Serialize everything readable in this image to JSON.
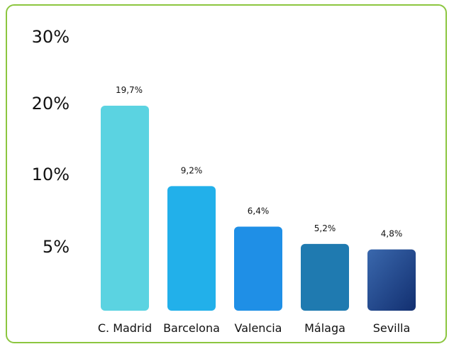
{
  "chart_data": {
    "type": "bar",
    "categories": [
      "C. Madrid",
      "Barcelona",
      "Valencia",
      "Málaga",
      "Sevilla"
    ],
    "values": [
      19.7,
      9.2,
      6.4,
      5.2,
      4.8
    ],
    "data_labels": [
      "19,7%",
      "9,2%",
      "6,4%",
      "5,2%",
      "4,8%"
    ],
    "y_ticks": [
      {
        "label": "30%",
        "value": 30
      },
      {
        "label": "20%",
        "value": 20
      },
      {
        "label": "10%",
        "value": 10
      },
      {
        "label": "5%",
        "value": 5
      }
    ],
    "colors": [
      "#5bd3e1",
      "#22b0ea",
      "#1f8fe6",
      "#1f7ab0",
      "#1c4e95"
    ],
    "grid": false,
    "legend": "none",
    "title": "",
    "xlabel": "",
    "ylabel": ""
  },
  "colors": {
    "frame_border": "#8cc63f"
  }
}
